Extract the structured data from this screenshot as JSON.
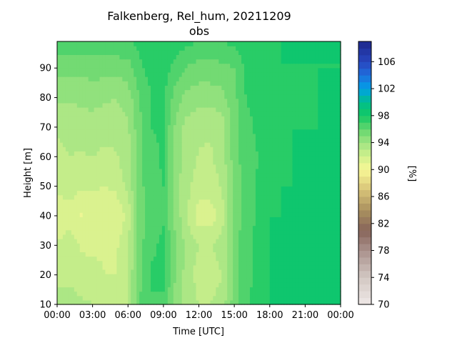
{
  "chart_data": {
    "type": "heatmap",
    "title": "Falkenberg, Rel_hum, 20211209",
    "subtitle": "obs",
    "xlabel": "Time [UTC]",
    "ylabel": "Height [m]",
    "colorbar_label": "[%]",
    "xlim": [
      0,
      24
    ],
    "ylim": [
      10,
      99
    ],
    "x_ticks": [
      0,
      3,
      6,
      9,
      12,
      15,
      18,
      21,
      24
    ],
    "x_tick_labels": [
      "00:00",
      "03:00",
      "06:00",
      "09:00",
      "12:00",
      "15:00",
      "18:00",
      "21:00",
      "00:00"
    ],
    "y_ticks": [
      10,
      20,
      30,
      40,
      50,
      60,
      70,
      80,
      90
    ],
    "y_tick_labels": [
      "10",
      "20",
      "30",
      "40",
      "50",
      "60",
      "70",
      "80",
      "90"
    ],
    "colorbar_range": [
      70,
      109
    ],
    "colorbar_step": 1,
    "colorbar_ticks": [
      70,
      74,
      78,
      82,
      86,
      90,
      94,
      98,
      102,
      106
    ],
    "colorbar_tick_labels": [
      "70",
      "74",
      "78",
      "82",
      "86",
      "90",
      "94",
      "98",
      "102",
      "106"
    ],
    "times": [
      0,
      1,
      2,
      3,
      4,
      5,
      6,
      7,
      8,
      9,
      10,
      11,
      12,
      13,
      14,
      15,
      16,
      17,
      18,
      19,
      20,
      21,
      22,
      23,
      24
    ],
    "heights": [
      10,
      20,
      30,
      40,
      50,
      60,
      70,
      80,
      90,
      99
    ],
    "values": [
      [
        93.4,
        93.7,
        93.2,
        93.0,
        92.8,
        92.5,
        93.0,
        96.0,
        96.8,
        96.5,
        94.5,
        93.5,
        93.0,
        93.0,
        93.5,
        95.5,
        96.8,
        97.5,
        98.0,
        98.0,
        98.0,
        98.0,
        98.0,
        98.0,
        98.0
      ],
      [
        92.7,
        92.6,
        92.4,
        92.7,
        92.0,
        92.0,
        93.0,
        95.8,
        97.2,
        97.6,
        95.0,
        93.5,
        92.6,
        92.5,
        93.0,
        95.5,
        96.6,
        97.3,
        98.0,
        98.0,
        98.0,
        98.0,
        98.0,
        98.0,
        98.0
      ],
      [
        92.1,
        92.6,
        91.9,
        91.6,
        91.8,
        91.8,
        93.0,
        95.7,
        96.7,
        97.3,
        95.3,
        93.5,
        93.0,
        92.9,
        93.4,
        95.5,
        96.7,
        97.3,
        98.0,
        98.0,
        98.0,
        98.0,
        98.0,
        98.0,
        98.0
      ],
      [
        91.1,
        91.5,
        90.9,
        91.6,
        91.3,
        91.2,
        92.3,
        95.6,
        96.6,
        96.8,
        94.6,
        93.1,
        91.4,
        91.4,
        92.7,
        95.3,
        96.6,
        97.1,
        98.0,
        98.0,
        98.0,
        98.0,
        98.0,
        98.0,
        98.0
      ],
      [
        92.3,
        92.6,
        92.1,
        92.1,
        92.0,
        92.2,
        93.3,
        95.6,
        96.8,
        97.0,
        94.5,
        93.2,
        92.6,
        92.5,
        93.1,
        95.4,
        96.5,
        97.1,
        97.8,
        98.0,
        98.0,
        98.0,
        98.0,
        98.0,
        98.0
      ],
      [
        92.7,
        93.0,
        92.9,
        93.0,
        92.8,
        92.9,
        93.6,
        95.9,
        96.8,
        97.1,
        94.6,
        93.5,
        92.9,
        92.9,
        93.5,
        95.5,
        96.6,
        97.0,
        97.4,
        97.8,
        98.0,
        98.0,
        98.0,
        98.0,
        98.0
      ],
      [
        93.1,
        93.3,
        93.4,
        93.5,
        93.3,
        93.3,
        93.8,
        95.8,
        97.0,
        97.1,
        94.8,
        93.6,
        93.2,
        93.1,
        93.5,
        95.5,
        96.7,
        97.2,
        97.4,
        97.7,
        98.0,
        98.0,
        98.0,
        98.0,
        98.0
      ],
      [
        94.2,
        94.1,
        94.3,
        94.4,
        94.2,
        94.0,
        94.5,
        96.0,
        97.0,
        97.2,
        95.6,
        94.6,
        94.4,
        94.4,
        94.7,
        95.7,
        97.0,
        97.4,
        97.6,
        97.8,
        97.9,
        97.9,
        98.0,
        98.0,
        98.0
      ],
      [
        95.3,
        95.4,
        95.3,
        95.4,
        95.4,
        95.4,
        95.5,
        96.7,
        97.5,
        97.5,
        96.6,
        95.9,
        95.6,
        95.6,
        95.7,
        96.0,
        97.3,
        97.6,
        97.8,
        98.0,
        98.0,
        98.0,
        98.0,
        98.0,
        98.0
      ],
      [
        96.6,
        96.7,
        96.7,
        96.6,
        96.7,
        96.7,
        96.9,
        97.4,
        97.9,
        98.0,
        97.6,
        97.2,
        97.0,
        96.9,
        97.0,
        97.2,
        97.7,
        97.9,
        98.0,
        98.0,
        98.0,
        98.0,
        98.0,
        98.0,
        98.0
      ]
    ]
  }
}
